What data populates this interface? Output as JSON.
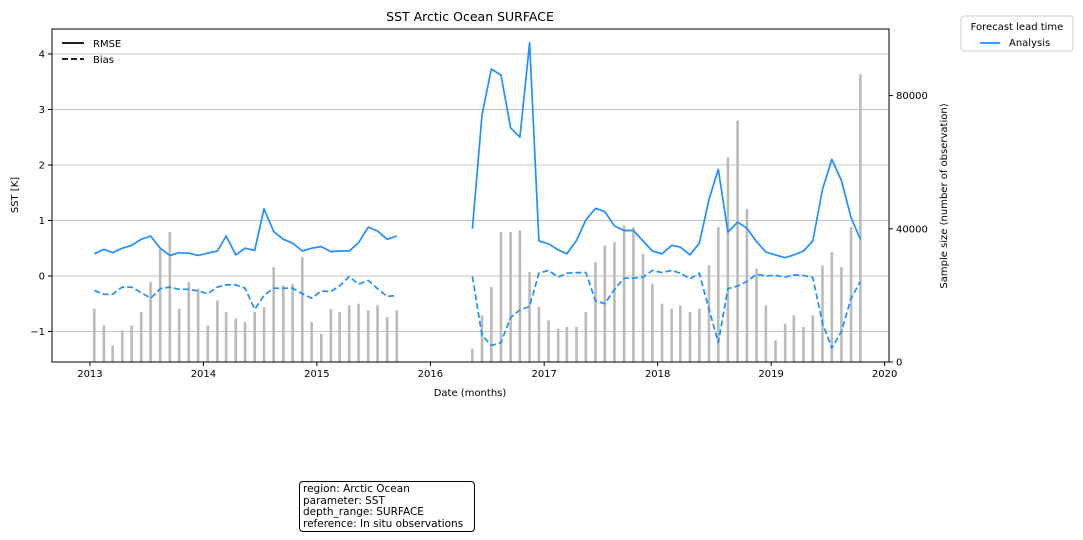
{
  "chart_data": {
    "type": "line",
    "title": "SST Arctic Ocean SURFACE",
    "xlabel": "Date (months)",
    "ylabel": "SST [K]",
    "y2label": "Sample size (number of observation)",
    "xlim": [
      "2012-09-01",
      "2020-01-15"
    ],
    "ylim": [
      -1.55,
      4.45
    ],
    "y2lim": [
      0,
      100000
    ],
    "x_ticks": [
      "2013",
      "2014",
      "2015",
      "2016",
      "2017",
      "2018",
      "2019",
      "2020"
    ],
    "y_ticks": [
      "−1",
      "0",
      "1",
      "2",
      "3",
      "4"
    ],
    "y2_ticks": [
      "0",
      "40000",
      "80000"
    ],
    "grid": "horizontal",
    "style_legend": {
      "entries": [
        "RMSE",
        "Bias"
      ],
      "placement": "upper-left"
    },
    "series_legend": {
      "title": "Forecast lead time",
      "entries": [
        "Analysis"
      ],
      "placement": "outside-right"
    },
    "series_color": "#1e90ff",
    "bar_color": "#bbbbbb",
    "dates": [
      "2013-01",
      "2013-02",
      "2013-03",
      "2013-04",
      "2013-05",
      "2013-06",
      "2013-07",
      "2013-08",
      "2013-09",
      "2013-10",
      "2013-11",
      "2013-12",
      "2014-01",
      "2014-02",
      "2014-03",
      "2014-04",
      "2014-05",
      "2014-06",
      "2014-07",
      "2014-08",
      "2014-09",
      "2014-10",
      "2014-11",
      "2014-12",
      "2015-01",
      "2015-02",
      "2015-03",
      "2015-04",
      "2015-05",
      "2015-06",
      "2015-07",
      "2015-08",
      "2015-09",
      "2016-05",
      "2016-06",
      "2016-07",
      "2016-08",
      "2016-09",
      "2016-10",
      "2016-11",
      "2016-12",
      "2017-01",
      "2017-02",
      "2017-03",
      "2017-04",
      "2017-05",
      "2017-06",
      "2017-07",
      "2017-08",
      "2017-09",
      "2017-10",
      "2017-11",
      "2017-12",
      "2018-01",
      "2018-02",
      "2018-03",
      "2018-04",
      "2018-05",
      "2018-06",
      "2018-07",
      "2018-08",
      "2018-09",
      "2018-10",
      "2018-11",
      "2018-12",
      "2019-01",
      "2019-02",
      "2019-03",
      "2019-04",
      "2019-05",
      "2019-06",
      "2019-07",
      "2019-08",
      "2019-09",
      "2019-10"
    ],
    "series": [
      {
        "name": "RMSE",
        "values": [
          0.4,
          0.48,
          0.42,
          0.5,
          0.55,
          0.66,
          0.72,
          0.5,
          0.37,
          0.42,
          0.41,
          0.37,
          0.41,
          0.45,
          0.72,
          0.38,
          0.5,
          0.46,
          1.21,
          0.8,
          0.66,
          0.59,
          0.45,
          0.5,
          0.53,
          0.44,
          0.45,
          0.45,
          0.6,
          0.88,
          0.81,
          0.66,
          0.72,
          0.85,
          2.9,
          3.73,
          3.62,
          2.67,
          2.5,
          4.2,
          0.63,
          0.58,
          0.47,
          0.4,
          0.64,
          1.01,
          1.22,
          1.16,
          0.9,
          0.82,
          0.82,
          0.63,
          0.45,
          0.4,
          0.55,
          0.52,
          0.38,
          0.59,
          1.38,
          1.92,
          0.79,
          0.97,
          0.86,
          0.62,
          0.43,
          0.38,
          0.33,
          0.38,
          0.45,
          0.63,
          1.56,
          2.1,
          1.72,
          1.05,
          0.66
        ]
      },
      {
        "name": "Bias",
        "values": [
          -0.26,
          -0.33,
          -0.33,
          -0.2,
          -0.2,
          -0.3,
          -0.4,
          -0.23,
          -0.2,
          -0.24,
          -0.24,
          -0.27,
          -0.32,
          -0.2,
          -0.16,
          -0.16,
          -0.22,
          -0.6,
          -0.35,
          -0.22,
          -0.22,
          -0.22,
          -0.32,
          -0.4,
          -0.27,
          -0.28,
          -0.18,
          -0.01,
          -0.15,
          -0.08,
          -0.23,
          -0.37,
          -0.35,
          -0.01,
          -1.07,
          -1.25,
          -1.2,
          -0.75,
          -0.61,
          -0.55,
          0.05,
          0.1,
          -0.02,
          0.05,
          0.06,
          0.06,
          -0.45,
          -0.5,
          -0.24,
          -0.04,
          -0.04,
          -0.02,
          0.1,
          0.06,
          0.1,
          0.05,
          -0.05,
          0.05,
          -0.6,
          -1.2,
          -0.23,
          -0.18,
          -0.1,
          0.03,
          0.0,
          0.01,
          -0.02,
          0.02,
          0.01,
          -0.03,
          -0.85,
          -1.3,
          -1.0,
          -0.4,
          -0.1
        ]
      },
      {
        "name": "Sample size",
        "axis": "right",
        "values": [
          16000,
          11000,
          5000,
          9500,
          11000,
          15000,
          24000,
          34000,
          39000,
          16000,
          24000,
          22000,
          11000,
          18500,
          15000,
          13000,
          12000,
          15000,
          16500,
          28500,
          23000,
          23500,
          31500,
          12000,
          8500,
          16000,
          15000,
          17000,
          17500,
          15500,
          17000,
          13500,
          15500,
          4000,
          14000,
          22500,
          39000,
          39000,
          39500,
          27000,
          16500,
          12500,
          10000,
          10500,
          10500,
          15000,
          30000,
          35000,
          36000,
          41000,
          40500,
          32500,
          23500,
          17500,
          16000,
          17000,
          15000,
          16000,
          29000,
          40500,
          61500,
          72500,
          46000,
          28000,
          17000,
          6500,
          11500,
          14000,
          10500,
          14000,
          29000,
          33000,
          28500,
          40500,
          86500
        ]
      }
    ]
  },
  "info": [
    "region: Arctic Ocean",
    "parameter: SST",
    "depth_range: SURFACE",
    "reference: In situ observations"
  ]
}
